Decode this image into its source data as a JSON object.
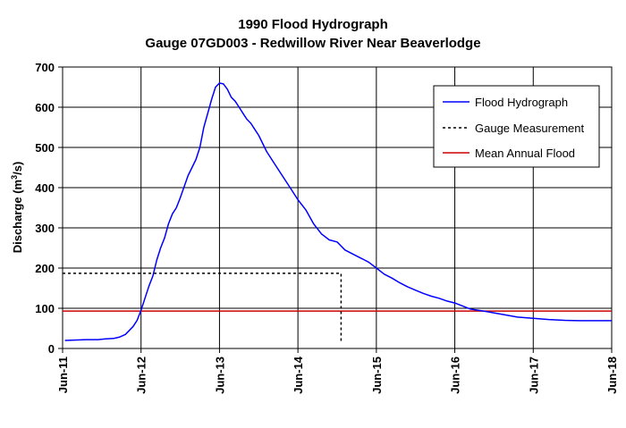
{
  "chart_data": {
    "type": "line",
    "title": "1990 Flood Hydrograph",
    "subtitle": "Gauge 07GD003 - Redwillow River Near Beaverlodge",
    "ylabel_prefix": "Discharge (m",
    "ylabel_sup": "3",
    "ylabel_suffix": "/s)",
    "xlabel": "",
    "x_ticks": [
      "Jun-11",
      "Jun-12",
      "Jun-13",
      "Jun-14",
      "Jun-15",
      "Jun-16",
      "Jun-17",
      "Jun-18"
    ],
    "y_ticks": [
      "0",
      "100",
      "200",
      "300",
      "400",
      "500",
      "600",
      "700"
    ],
    "xlim": [
      0,
      7
    ],
    "ylim": [
      0,
      700
    ],
    "grid": true,
    "legend_position": "top-right",
    "legend": {
      "hydrograph": "Flood Hydrograph",
      "gauge": "Gauge Measurement",
      "mean": "Mean Annual Flood"
    },
    "colors": {
      "hydrograph": "#0000ff",
      "gauge": "#000000",
      "mean": "#cc0000"
    },
    "series": [
      {
        "name": "Flood Hydrograph",
        "x": [
          0.03,
          0.15,
          0.3,
          0.45,
          0.55,
          0.65,
          0.72,
          0.8,
          0.85,
          0.9,
          0.95,
          1.0,
          1.05,
          1.1,
          1.15,
          1.2,
          1.25,
          1.3,
          1.35,
          1.4,
          1.45,
          1.5,
          1.6,
          1.7,
          1.75,
          1.8,
          1.85,
          1.9,
          1.95,
          2.0,
          2.05,
          2.1,
          2.15,
          2.2,
          2.25,
          2.3,
          2.35,
          2.4,
          2.45,
          2.5,
          2.55,
          2.6,
          2.7,
          2.8,
          2.9,
          3.0,
          3.1,
          3.2,
          3.3,
          3.4,
          3.5,
          3.6,
          3.7,
          3.8,
          3.85,
          3.9,
          4.0,
          4.1,
          4.2,
          4.3,
          4.4,
          4.5,
          4.6,
          4.7,
          4.8,
          4.9,
          5.0,
          5.2,
          5.4,
          5.6,
          5.8,
          6.0,
          6.2,
          6.4,
          6.6,
          6.8,
          7.0
        ],
        "values": [
          20,
          21,
          22,
          22,
          24,
          25,
          28,
          35,
          45,
          55,
          70,
          95,
          125,
          155,
          180,
          220,
          250,
          275,
          310,
          335,
          350,
          375,
          430,
          470,
          500,
          550,
          585,
          620,
          650,
          660,
          658,
          645,
          625,
          615,
          600,
          585,
          570,
          560,
          545,
          530,
          510,
          490,
          460,
          430,
          400,
          370,
          345,
          310,
          285,
          270,
          265,
          245,
          235,
          225,
          220,
          215,
          200,
          185,
          175,
          163,
          153,
          145,
          137,
          130,
          125,
          118,
          113,
          98,
          92,
          85,
          78,
          75,
          72,
          70,
          69,
          69,
          69
        ]
      },
      {
        "name": "Gauge Measurement",
        "x": [
          0,
          3.55,
          3.55
        ],
        "values": [
          187,
          187,
          13
        ]
      },
      {
        "name": "Mean Annual Flood",
        "x": [
          0,
          7
        ],
        "values": [
          93,
          93
        ]
      }
    ]
  }
}
